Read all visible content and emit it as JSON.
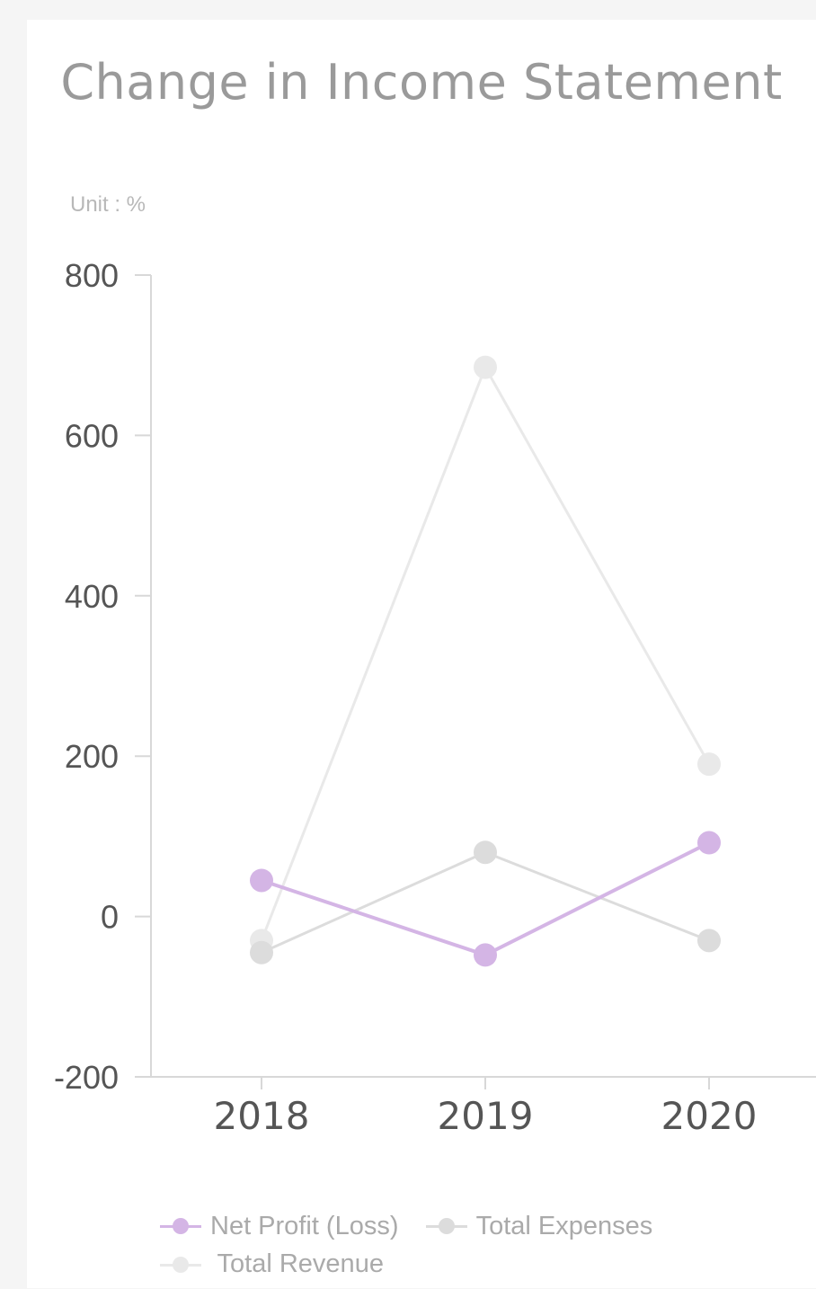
{
  "chart_data": {
    "type": "line",
    "title": "Change in Income Statement",
    "unit_label": "Unit : %",
    "x": [
      "2018",
      "2019",
      "2020"
    ],
    "ylim": [
      -200,
      800
    ],
    "yticks": [
      800,
      600,
      400,
      200,
      0,
      -200
    ],
    "grid": false,
    "legend_position": "bottom",
    "series": [
      {
        "name": "Net Profit (Loss)",
        "values": [
          45,
          -48,
          92
        ],
        "color": "#d4b5e5"
      },
      {
        "name": "Total Expenses",
        "values": [
          -45,
          80,
          -30
        ],
        "color": "#dcdcdc"
      },
      {
        "name": "Total Revenue",
        "values": [
          -30,
          685,
          190
        ],
        "color": "#e9e9e9"
      }
    ]
  }
}
